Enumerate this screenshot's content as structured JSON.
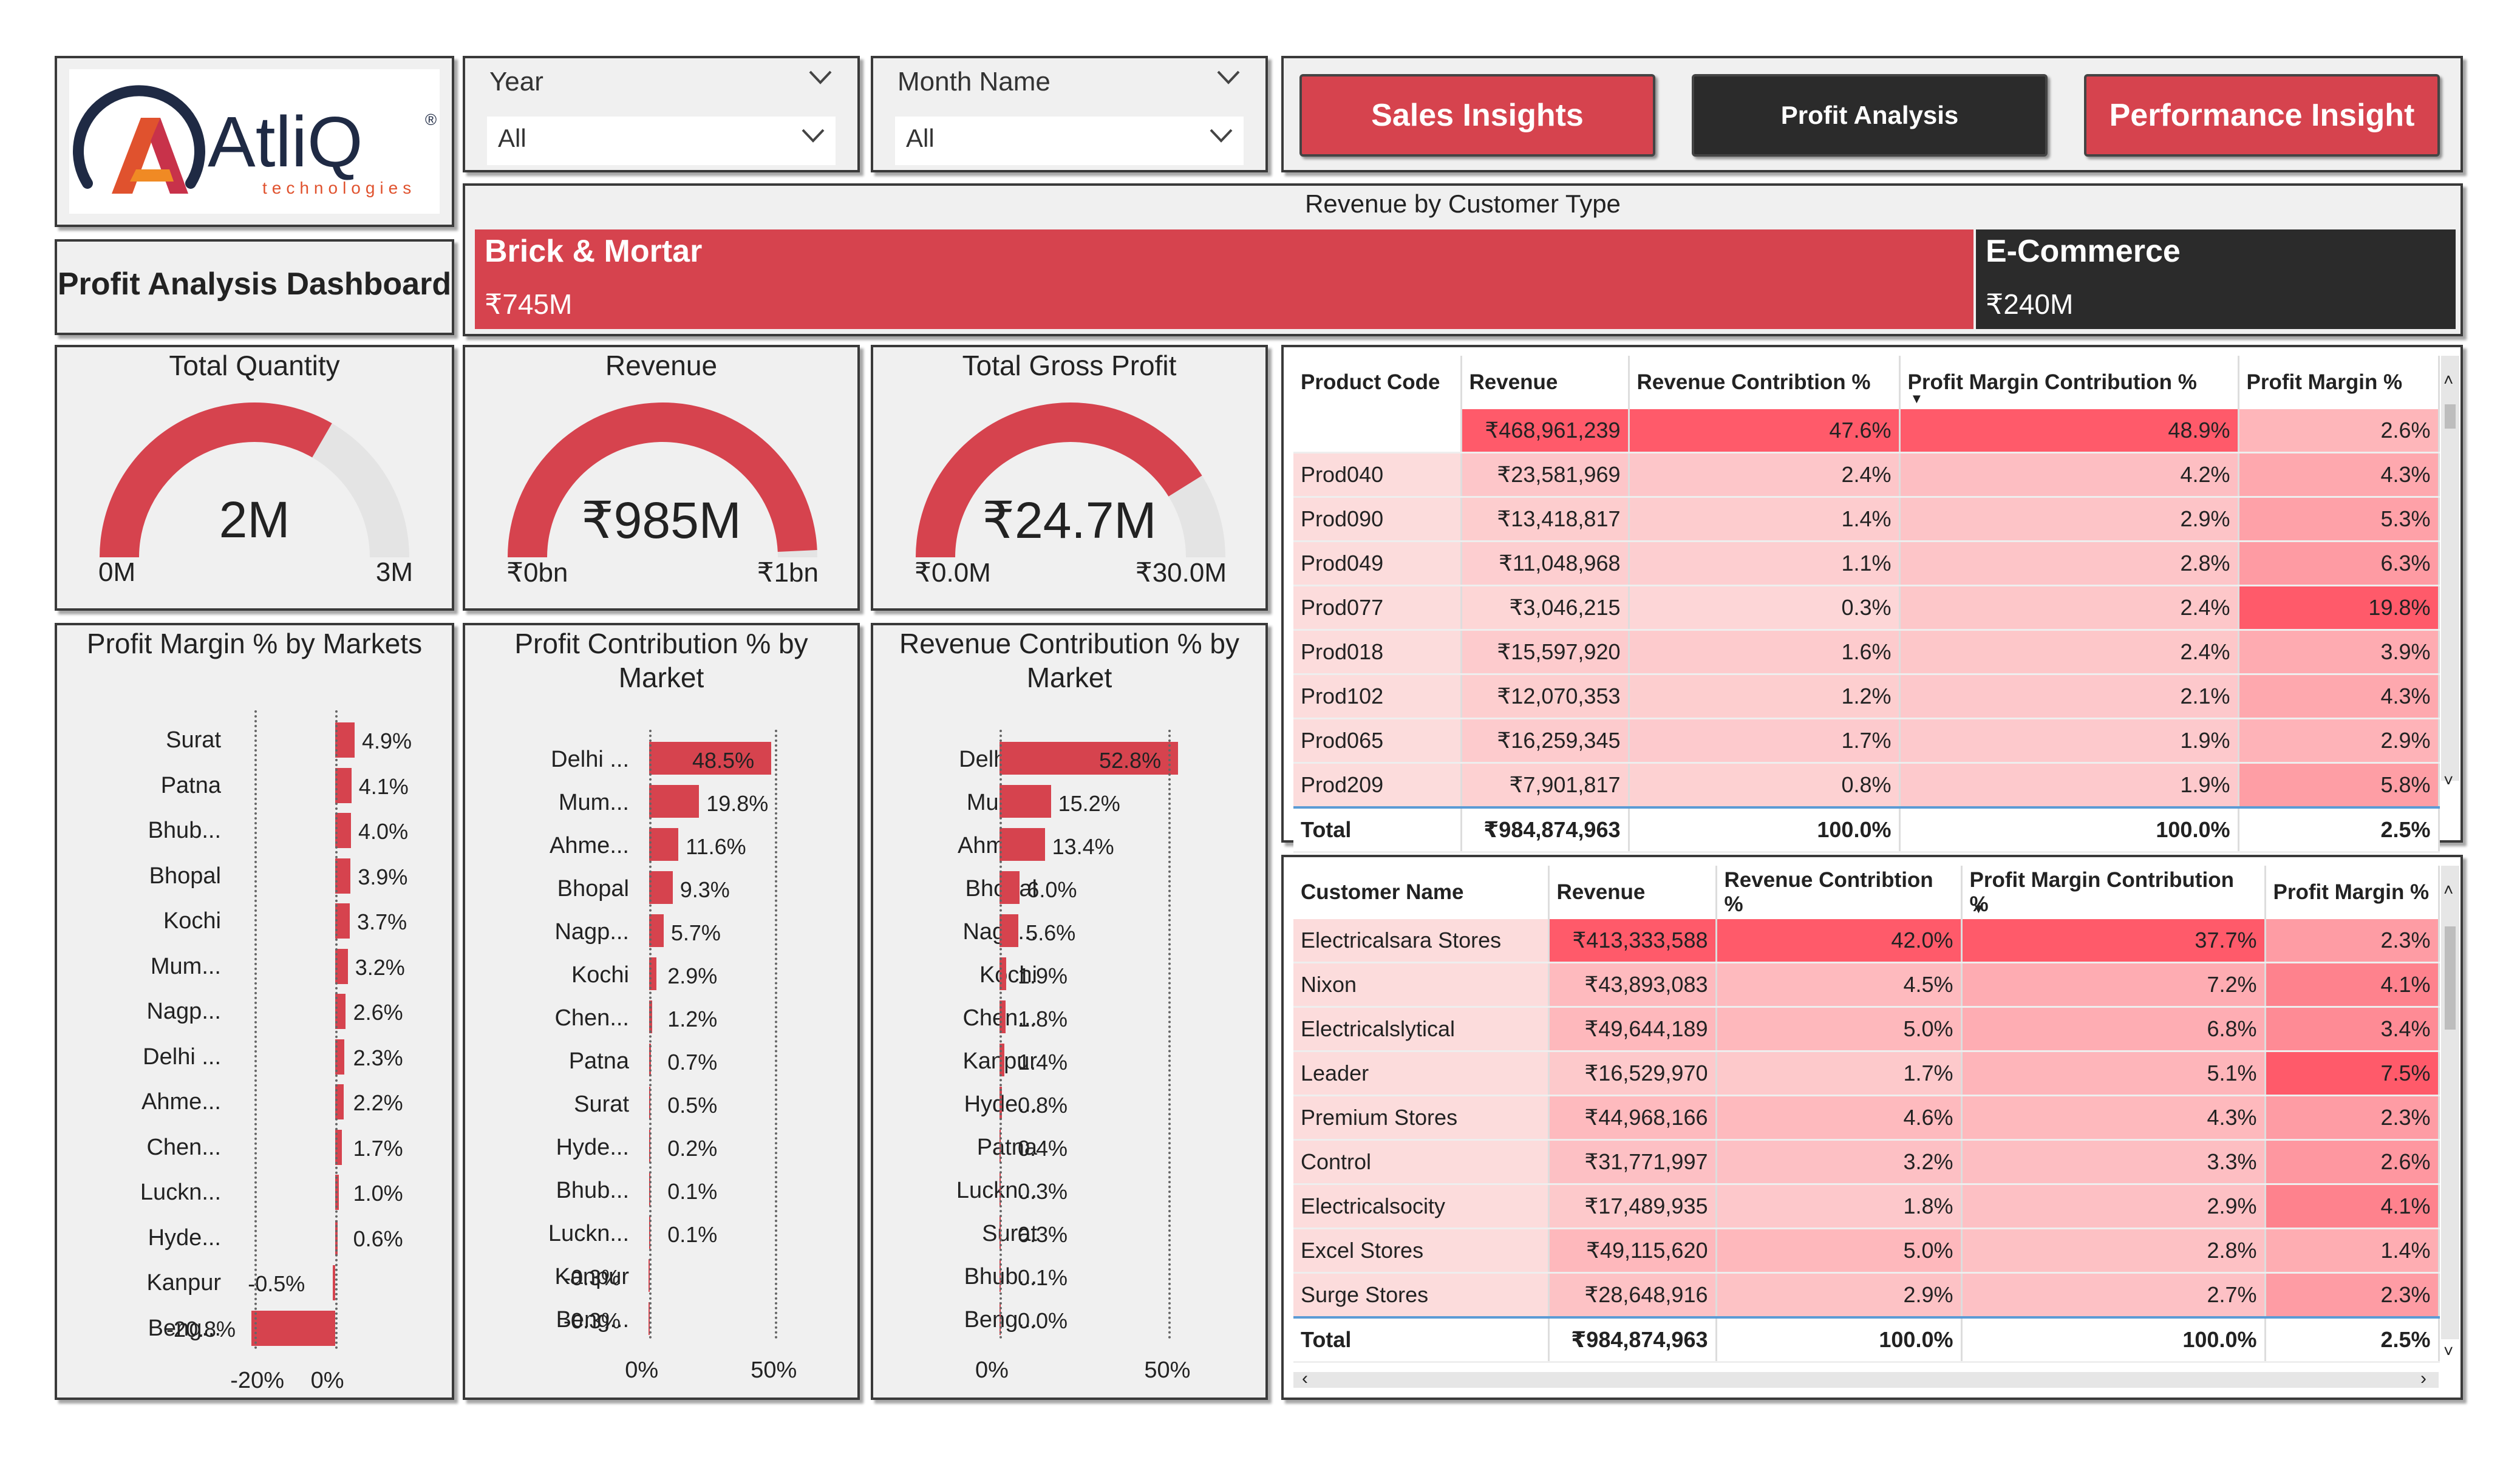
{
  "logo": {
    "brand": "AtliQ",
    "sub": "technologies",
    "mark": "®"
  },
  "dashboard_title": "Profit Analysis Dashboard",
  "slicers": [
    {
      "label": "Year",
      "value": "All"
    },
    {
      "label": "Month Name",
      "value": "All"
    }
  ],
  "nav": [
    {
      "label": "Sales Insights",
      "active": false
    },
    {
      "label": "Profit Analysis",
      "active": true
    },
    {
      "label": "Performance Insight",
      "active": false
    }
  ],
  "colors": {
    "accent": "#d6434e",
    "dark": "#2b2b2b",
    "panel": "#f0f0f0"
  },
  "customer_type": {
    "title": "Revenue by Customer Type",
    "items": [
      {
        "name": "Brick & Mortar",
        "value": "₹745M",
        "amount": 745
      },
      {
        "name": "E-Commerce",
        "value": "₹240M",
        "amount": 240
      }
    ]
  },
  "gauges": [
    {
      "title": "Total Quantity",
      "value": "2M",
      "min": "0M",
      "max": "3M",
      "fraction": 0.667
    },
    {
      "title": "Revenue",
      "value": "₹985M",
      "min": "₹0bn",
      "max": "₹1bn",
      "fraction": 0.985
    },
    {
      "title": "Total Gross Profit",
      "value": "₹24.7M",
      "min": "₹0.0M",
      "max": "₹30.0M",
      "fraction": 0.823
    }
  ],
  "chart_data": [
    {
      "type": "bar",
      "title": "Profit Margin % by Markets",
      "categories": [
        "Surat",
        "Patna",
        "Bhub...",
        "Bhopal",
        "Kochi",
        "Mum...",
        "Nagp...",
        "Delhi ...",
        "Ahme...",
        "Chen...",
        "Luckn...",
        "Hyde...",
        "Kanpur",
        "Beng..."
      ],
      "values": [
        4.9,
        4.1,
        4.0,
        3.9,
        3.7,
        3.2,
        2.6,
        2.3,
        2.2,
        1.7,
        1.0,
        0.6,
        -0.5,
        -20.8
      ],
      "labels": [
        "4.9%",
        "4.1%",
        "4.0%",
        "3.9%",
        "3.7%",
        "3.2%",
        "2.6%",
        "2.3%",
        "2.2%",
        "1.7%",
        "1.0%",
        "0.6%",
        "-0.5%",
        "-20.8%"
      ],
      "xlim": [
        -20.8,
        4.9
      ],
      "ticks": [
        {
          "v": -20,
          "label": "-20%"
        },
        {
          "v": 0,
          "label": "0%"
        }
      ]
    },
    {
      "type": "bar",
      "title": "Profit Contribution % by Market",
      "categories": [
        "Delhi ...",
        "Mum...",
        "Ahme...",
        "Bhopal",
        "Nagp...",
        "Kochi",
        "Chen...",
        "Patna",
        "Surat",
        "Hyde...",
        "Bhub...",
        "Luckn...",
        "Kanpur",
        "Beng..."
      ],
      "values": [
        48.5,
        19.8,
        11.6,
        9.3,
        5.7,
        2.9,
        1.2,
        0.7,
        0.5,
        0.2,
        0.1,
        0.1,
        -0.3,
        -0.3
      ],
      "labels": [
        "48.5%",
        "19.8%",
        "11.6%",
        "9.3%",
        "5.7%",
        "2.9%",
        "1.2%",
        "0.7%",
        "0.5%",
        "0.2%",
        "0.1%",
        "0.1%",
        "-0.3%",
        "-0.3%"
      ],
      "xlim": [
        -0.3,
        48.5
      ],
      "ticks": [
        {
          "v": 0,
          "label": "0%"
        },
        {
          "v": 50,
          "label": "50%"
        }
      ]
    },
    {
      "type": "bar",
      "title": "Revenue Contribution % by Market",
      "categories": [
        "Delhi ...",
        "Mum...",
        "Ahme...",
        "Bhopal",
        "Nagp...",
        "Kochi",
        "Chen...",
        "Kanpur",
        "Hyde...",
        "Patna",
        "Luckn...",
        "Surat",
        "Bhub...",
        "Beng..."
      ],
      "values": [
        52.8,
        15.2,
        13.4,
        6.0,
        5.6,
        1.9,
        1.8,
        1.4,
        0.8,
        0.4,
        0.3,
        0.3,
        0.1,
        0.0
      ],
      "labels": [
        "52.8%",
        "15.2%",
        "13.4%",
        "6.0%",
        "5.6%",
        "1.9%",
        "1.8%",
        "1.4%",
        "0.8%",
        "0.4%",
        "0.3%",
        "0.3%",
        "0.1%",
        "0.0%"
      ],
      "xlim": [
        0,
        52.8
      ],
      "ticks": [
        {
          "v": 0,
          "label": "0%"
        },
        {
          "v": 50,
          "label": "50%"
        }
      ]
    }
  ],
  "product_table": {
    "headers": [
      "Product Code",
      "Revenue",
      "Revenue Contribtion %",
      "Profit Margin Contribution %",
      "Profit Margin %"
    ],
    "rows": [
      [
        "",
        "₹468,961,239",
        "47.6%",
        "48.9%",
        "2.6%"
      ],
      [
        "Prod040",
        "₹23,581,969",
        "2.4%",
        "4.2%",
        "4.3%"
      ],
      [
        "Prod090",
        "₹13,418,817",
        "1.4%",
        "2.9%",
        "5.3%"
      ],
      [
        "Prod049",
        "₹11,048,968",
        "1.1%",
        "2.8%",
        "6.3%"
      ],
      [
        "Prod077",
        "₹3,046,215",
        "0.3%",
        "2.4%",
        "19.8%"
      ],
      [
        "Prod018",
        "₹15,597,920",
        "1.6%",
        "2.4%",
        "3.9%"
      ],
      [
        "Prod102",
        "₹12,070,353",
        "1.2%",
        "2.1%",
        "4.3%"
      ],
      [
        "Prod065",
        "₹16,259,345",
        "1.7%",
        "1.9%",
        "2.9%"
      ],
      [
        "Prod209",
        "₹7,901,817",
        "0.8%",
        "1.9%",
        "5.8%"
      ]
    ],
    "total": [
      "Total",
      "₹984,874,963",
      "100.0%",
      "100.0%",
      "2.5%"
    ]
  },
  "customer_table": {
    "headers": [
      "Customer Name",
      "Revenue",
      "Revenue Contribtion %",
      "Profit Margin Contribution %",
      "Profit Margin %"
    ],
    "rows": [
      [
        "Electricalsara Stores",
        "₹413,333,588",
        "42.0%",
        "37.7%",
        "2.3%"
      ],
      [
        "Nixon",
        "₹43,893,083",
        "4.5%",
        "7.2%",
        "4.1%"
      ],
      [
        "Electricalslytical",
        "₹49,644,189",
        "5.0%",
        "6.8%",
        "3.4%"
      ],
      [
        "Leader",
        "₹16,529,970",
        "1.7%",
        "5.1%",
        "7.5%"
      ],
      [
        "Premium Stores",
        "₹44,968,166",
        "4.6%",
        "4.3%",
        "2.3%"
      ],
      [
        "Control",
        "₹31,771,997",
        "3.2%",
        "3.3%",
        "2.6%"
      ],
      [
        "Electricalsocity",
        "₹17,489,935",
        "1.8%",
        "2.9%",
        "4.1%"
      ],
      [
        "Excel Stores",
        "₹49,115,620",
        "5.0%",
        "2.8%",
        "1.4%"
      ],
      [
        "Surge Stores",
        "₹28,648,916",
        "2.9%",
        "2.7%",
        "2.3%"
      ]
    ],
    "total": [
      "Total",
      "₹984,874,963",
      "100.0%",
      "100.0%",
      "2.5%"
    ]
  }
}
